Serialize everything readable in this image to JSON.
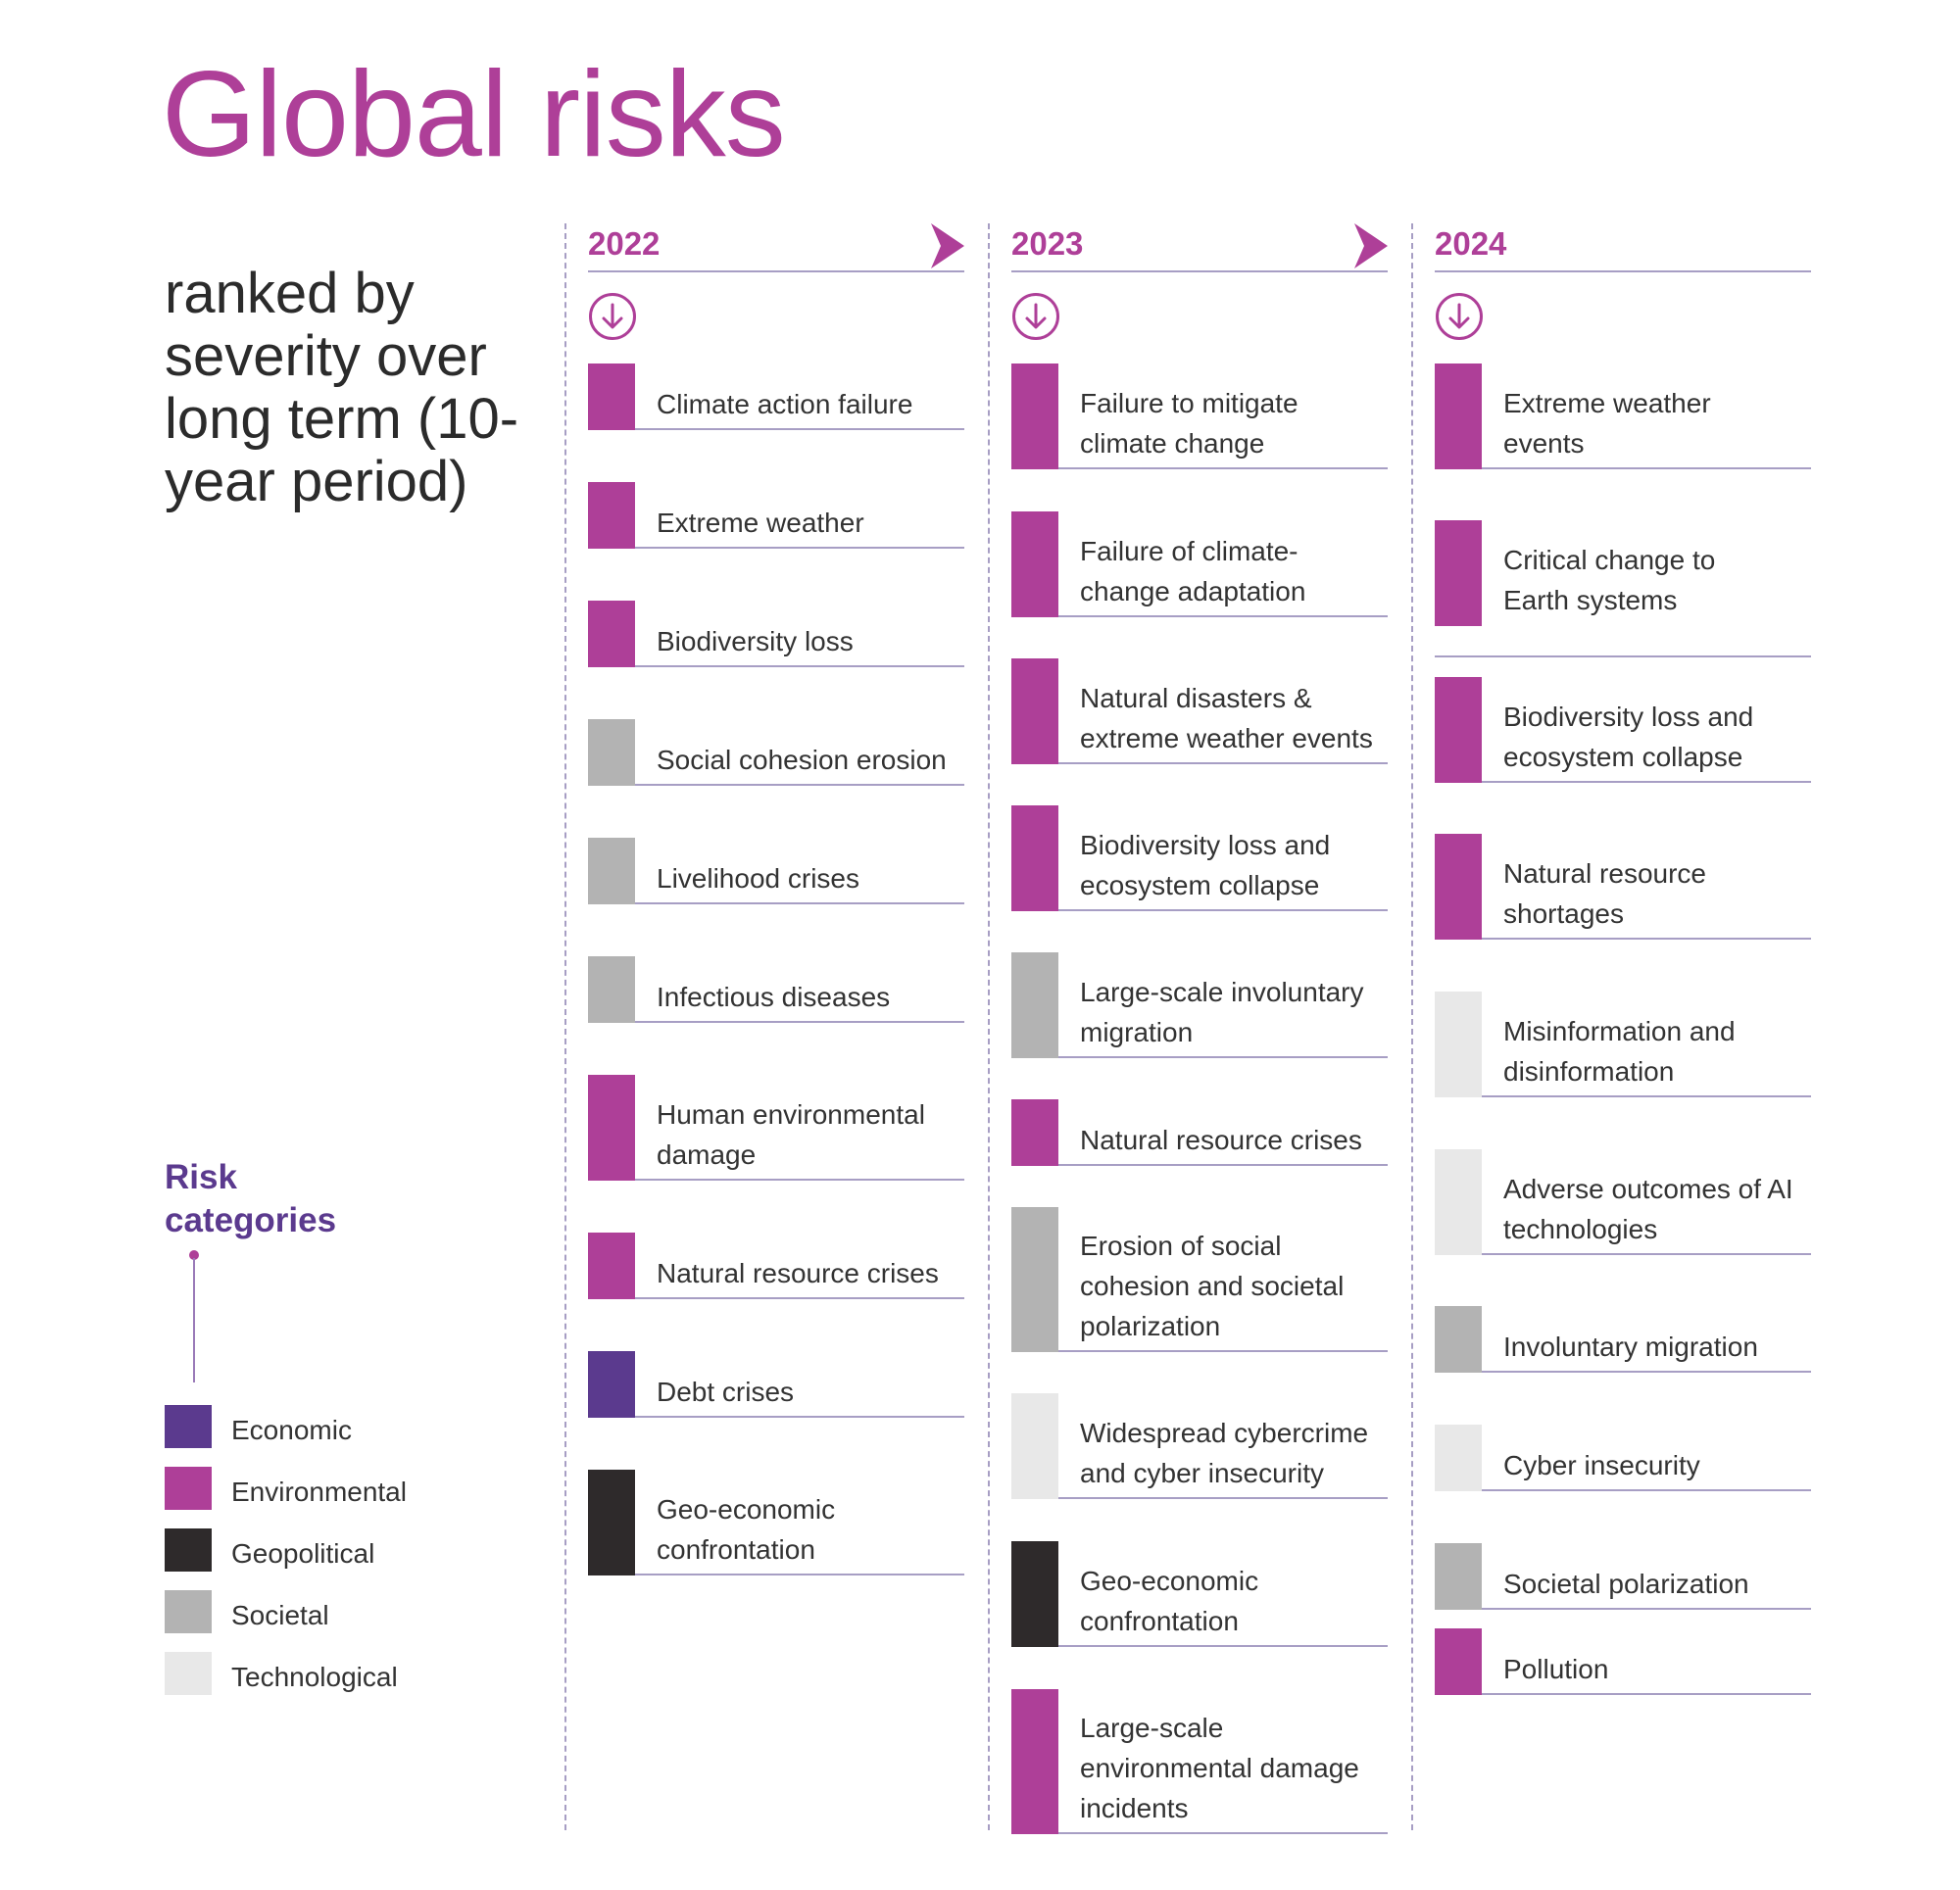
{
  "title": "Global risks",
  "subtitle": "ranked by severity over long term (10-year period)",
  "legend": {
    "title": "Risk categories",
    "items": [
      {
        "label": "Economic",
        "color": "#5b3a8e"
      },
      {
        "label": "Environmental",
        "color": "#ae3f98"
      },
      {
        "label": "Geopolitical",
        "color": "#2e2a2b"
      },
      {
        "label": "Societal",
        "color": "#b3b3b3"
      },
      {
        "label": "Technological",
        "color": "#e8e8e8"
      }
    ]
  },
  "columns": [
    {
      "year": "2022",
      "items": [
        {
          "label": "Climate action failure",
          "category": "Environmental"
        },
        {
          "label": "Extreme weather",
          "category": "Environmental"
        },
        {
          "label": "Biodiversity loss",
          "category": "Environmental"
        },
        {
          "label": "Social cohesion erosion",
          "category": "Societal"
        },
        {
          "label": "Livelihood crises",
          "category": "Societal"
        },
        {
          "label": "Infectious diseases",
          "category": "Societal"
        },
        {
          "label": "Human environmental damage",
          "category": "Environmental"
        },
        {
          "label": "Natural resource crises",
          "category": "Environmental"
        },
        {
          "label": "Debt crises",
          "category": "Economic"
        },
        {
          "label": "Geo-economic confrontation",
          "category": "Geopolitical"
        }
      ]
    },
    {
      "year": "2023",
      "items": [
        {
          "label": "Failure to mitigate climate change",
          "category": "Environmental"
        },
        {
          "label": "Failure of climate-change adaptation",
          "category": "Environmental"
        },
        {
          "label": "Natural disasters & extreme weather events",
          "category": "Environmental"
        },
        {
          "label": "Biodiversity loss and ecosystem collapse",
          "category": "Environmental"
        },
        {
          "label": "Large-scale involuntary migration",
          "category": "Societal"
        },
        {
          "label": "Natural resource crises",
          "category": "Environmental"
        },
        {
          "label": "Erosion of social cohesion and societal polarization",
          "category": "Societal"
        },
        {
          "label": "Widespread cybercrime and cyber insecurity",
          "category": "Technological"
        },
        {
          "label": "Geo-economic confrontation",
          "category": "Geopolitical"
        },
        {
          "label": "Large-scale environmental damage incidents",
          "category": "Environmental"
        }
      ]
    },
    {
      "year": "2024",
      "items": [
        {
          "label": "Extreme weather events",
          "category": "Environmental"
        },
        {
          "label": "Critical change to Earth systems",
          "category": "Environmental"
        },
        {
          "label": "Biodiversity loss and ecosystem collapse",
          "category": "Environmental"
        },
        {
          "label": "Natural resource shortages",
          "category": "Environmental"
        },
        {
          "label": "Misinformation and disinformation",
          "category": "Technological"
        },
        {
          "label": "Adverse outcomes of AI technologies",
          "category": "Technological"
        },
        {
          "label": "Involuntary migration",
          "category": "Societal"
        },
        {
          "label": "Cyber insecurity",
          "category": "Technological"
        },
        {
          "label": "Societal polarization",
          "category": "Societal"
        },
        {
          "label": "Pollution",
          "category": "Environmental"
        }
      ]
    }
  ]
}
